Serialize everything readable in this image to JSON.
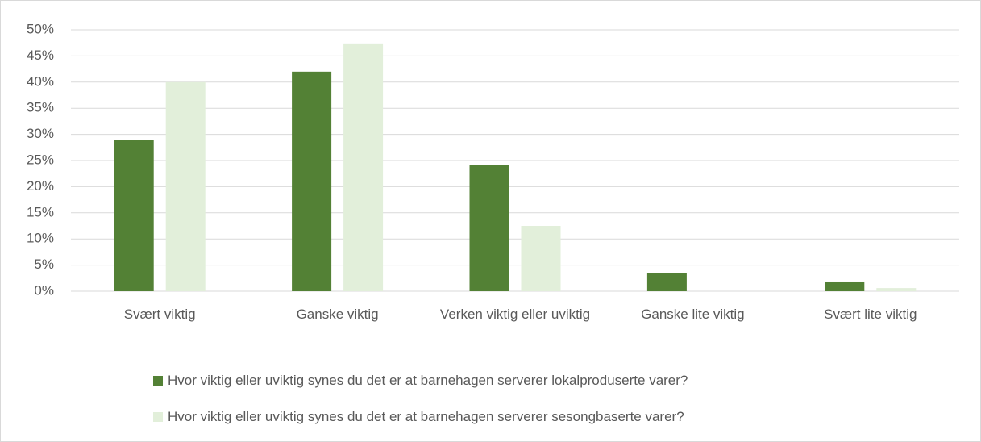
{
  "chart_data": {
    "type": "bar",
    "categories": [
      "Svært viktig",
      "Ganske viktig",
      "Verken viktig eller uviktig",
      "Ganske lite viktig",
      "Svært lite viktig"
    ],
    "series": [
      {
        "name": "Hvor viktig eller uviktig synes du det er at barnehagen serverer lokalproduserte varer?",
        "color": "#538135",
        "values": [
          29.0,
          42.0,
          24.2,
          3.4,
          1.7
        ]
      },
      {
        "name": "Hvor viktig eller uviktig synes du det er at barnehagen serverer sesongbaserte varer?",
        "color": "#e2efda",
        "values": [
          40.0,
          47.4,
          12.5,
          0,
          0.6
        ]
      }
    ],
    "ylim": [
      0,
      50
    ],
    "yticks": [
      {
        "value": 0,
        "label": "0%"
      },
      {
        "value": 5,
        "label": "5%"
      },
      {
        "value": 10,
        "label": "10%"
      },
      {
        "value": 15,
        "label": "15%"
      },
      {
        "value": 20,
        "label": "20%"
      },
      {
        "value": 25,
        "label": "25%"
      },
      {
        "value": 30,
        "label": "30%"
      },
      {
        "value": 35,
        "label": "35%"
      },
      {
        "value": 40,
        "label": "40%"
      },
      {
        "value": 45,
        "label": "45%"
      },
      {
        "value": 50,
        "label": "50%"
      }
    ],
    "grid": true
  }
}
